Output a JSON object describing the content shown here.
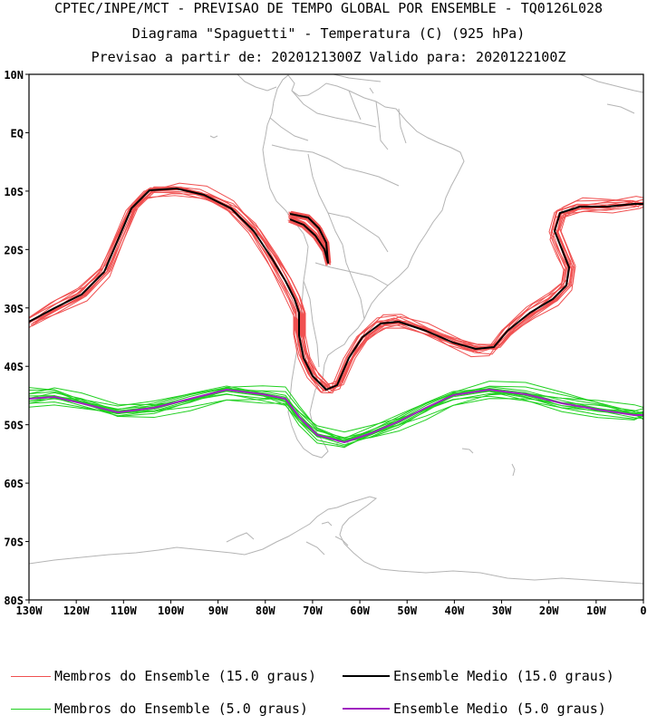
{
  "header": {
    "line1": "CPTEC/INPE/MCT - PREVISAO DE TEMPO GLOBAL POR ENSEMBLE - TQ0126L028",
    "line2": "Diagrama \"Spaguetti\" - Temperatura (C) (925 hPa)",
    "line3": "Previsao a partir de: 2020121300Z  Valido para: 2020122100Z"
  },
  "map": {
    "lon_range": [
      -130,
      0
    ],
    "lat_range": [
      -80,
      10
    ],
    "lat_ticks": [
      "10N",
      "EQ",
      "10S",
      "20S",
      "30S",
      "40S",
      "50S",
      "60S",
      "70S",
      "80S"
    ],
    "lon_ticks": [
      "130W",
      "120W",
      "110W",
      "100W",
      "90W",
      "80W",
      "70W",
      "60W",
      "50W",
      "40W",
      "30W",
      "20W",
      "10W",
      "0"
    ],
    "coastline_color": "#b4b4b4"
  },
  "legend": {
    "items": [
      {
        "label": "Membros do Ensemble (15.0 graus)",
        "color": "#f05050"
      },
      {
        "label": "Ensemble Medio (15.0 graus)",
        "color": "#000000"
      },
      {
        "label": "Membros do Ensemble (5.0 graus)",
        "color": "#20d020"
      },
      {
        "label": "Ensemble Medio (5.0 graus)",
        "color": "#a020c0"
      }
    ]
  }
}
